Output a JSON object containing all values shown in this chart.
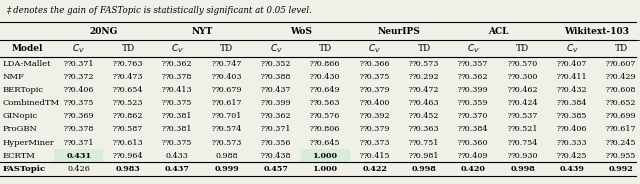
{
  "caption": "‡ denotes the gain of FASTopic is statistically significant at 0.05 level.",
  "datasets": [
    "20NG",
    "NYT",
    "WoS",
    "NeurIPS",
    "ACL",
    "Wikitext-103"
  ],
  "metrics": [
    "C_V",
    "TD"
  ],
  "models": [
    "LDA-Mallet",
    "NMF",
    "BERTopic",
    "CombinedTM",
    "GINopic",
    "ProGBN",
    "HyperMiner",
    "ECRTM",
    "FASTopic"
  ],
  "data": {
    "LDA-Mallet": {
      "20NG": [
        "⁇0.371",
        "⁇0.763"
      ],
      "NYT": [
        "⁇0.362",
        "⁇0.747"
      ],
      "WoS": [
        "⁇0.352",
        "⁇0.866"
      ],
      "NeurIPS": [
        "⁇0.366",
        "⁇0.573"
      ],
      "ACL": [
        "⁇0.357",
        "⁇0.570"
      ],
      "Wikitext-103": [
        "⁇0.407",
        "⁇0.607"
      ]
    },
    "NMF": {
      "20NG": [
        "⁇0.372",
        "⁇0.473"
      ],
      "NYT": [
        "⁇0.378",
        "⁇0.403"
      ],
      "WoS": [
        "⁇0.388",
        "⁇0.430"
      ],
      "NeurIPS": [
        "⁇0.375",
        "⁇0.292"
      ],
      "ACL": [
        "⁇0.362",
        "⁇0.300"
      ],
      "Wikitext-103": [
        "⁇0.411",
        "⁇0.429"
      ]
    },
    "BERTopic": {
      "20NG": [
        "⁇0.406",
        "⁇0.654"
      ],
      "NYT": [
        "⁇0.413",
        "⁇0.679"
      ],
      "WoS": [
        "⁇0.437",
        "⁇0.649"
      ],
      "NeurIPS": [
        "⁇0.379",
        "⁇0.472"
      ],
      "ACL": [
        "⁇0.399",
        "⁇0.462"
      ],
      "Wikitext-103": [
        "⁇0.432",
        "⁇0.608"
      ]
    },
    "CombinedTM": {
      "20NG": [
        "⁇0.375",
        "⁇0.523"
      ],
      "NYT": [
        "⁇0.375",
        "⁇0.617"
      ],
      "WoS": [
        "⁇0.399",
        "⁇0.563"
      ],
      "NeurIPS": [
        "⁇0.400",
        "⁇0.463"
      ],
      "ACL": [
        "⁇0.359",
        "⁇0.424"
      ],
      "Wikitext-103": [
        "⁇0.384",
        "⁇0.652"
      ]
    },
    "GINopic": {
      "20NG": [
        "⁇0.369",
        "⁇0.862"
      ],
      "NYT": [
        "⁇0.381",
        "⁇0.701"
      ],
      "WoS": [
        "⁇0.362",
        "⁇0.576"
      ],
      "NeurIPS": [
        "⁇0.392",
        "⁇0.452"
      ],
      "ACL": [
        "⁇0.370",
        "⁇0.537"
      ],
      "Wikitext-103": [
        "⁇0.385",
        "⁇0.699"
      ]
    },
    "ProGBN": {
      "20NG": [
        "⁇0.378",
        "⁇0.587"
      ],
      "NYT": [
        "⁇0.381",
        "⁇0.574"
      ],
      "WoS": [
        "⁇0.371",
        "⁇0.806"
      ],
      "NeurIPS": [
        "⁇0.379",
        "⁇0.363"
      ],
      "ACL": [
        "⁇0.384",
        "⁇0.521"
      ],
      "Wikitext-103": [
        "⁇0.406",
        "⁇0.617"
      ]
    },
    "HyperMiner": {
      "20NG": [
        "⁇0.371",
        "⁇0.613"
      ],
      "NYT": [
        "⁇0.375",
        "⁇0.573"
      ],
      "WoS": [
        "⁇0.356",
        "⁇0.645"
      ],
      "NeurIPS": [
        "⁇0.373",
        "⁇0.751"
      ],
      "ACL": [
        "⁇0.360",
        "⁇0.754"
      ],
      "Wikitext-103": [
        "⁇0.333",
        "⁇0.245"
      ]
    },
    "ECRTM": {
      "20NG": [
        "bold:0.431",
        "⁇0.964"
      ],
      "NYT": [
        "0.433",
        "0.988"
      ],
      "WoS": [
        "⁇0.438",
        "bold:1.000"
      ],
      "NeurIPS": [
        "⁇0.415",
        "⁇0.981"
      ],
      "ACL": [
        "⁇0.409",
        "⁇0.930"
      ],
      "Wikitext-103": [
        "⁇0.425",
        "⁇0.955"
      ]
    },
    "FASTopic": {
      "20NG": [
        "0.426",
        "bold:0.983"
      ],
      "NYT": [
        "bold:0.437",
        "bold:0.999"
      ],
      "WoS": [
        "bold:0.457",
        "bold:1.000"
      ],
      "NeurIPS": [
        "bold:0.422",
        "bold:0.998"
      ],
      "ACL": [
        "bold:0.420",
        "bold:0.998"
      ],
      "Wikitext-103": [
        "bold:0.439",
        "bold:0.992"
      ]
    }
  },
  "highlight_cells": {
    "ECRTM_20NG_CV": true,
    "ECRTM_WoS_TD": true
  },
  "bg_color": "#f0f0e8",
  "table_bg": "#ffffff",
  "header_bg": "#ffffff",
  "highlight_bg": "#e8f0e8"
}
